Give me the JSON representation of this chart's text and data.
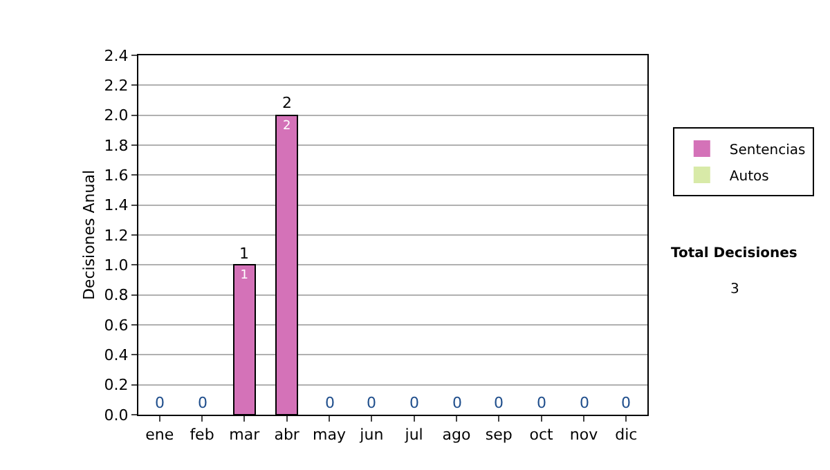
{
  "chart_data": {
    "type": "bar",
    "stacked": true,
    "ylabel": "Decisiones Anual",
    "categories": [
      "ene",
      "feb",
      "mar",
      "abr",
      "may",
      "jun",
      "jul",
      "ago",
      "sep",
      "oct",
      "nov",
      "dic"
    ],
    "series": [
      {
        "name": "Sentencias",
        "color": "#d472b8",
        "values": [
          0,
          0,
          1,
          2,
          0,
          0,
          0,
          0,
          0,
          0,
          0,
          0
        ],
        "value_labels": [
          null,
          null,
          "1",
          "2",
          null,
          null,
          null,
          null,
          null,
          null,
          null,
          null
        ]
      },
      {
        "name": "Autos",
        "color": "#d8eaa8",
        "values": [
          0,
          0,
          0,
          0,
          0,
          0,
          0,
          0,
          0,
          0,
          0,
          0
        ]
      }
    ],
    "totals": [
      "0",
      "0",
      "1",
      "2",
      "0",
      "0",
      "0",
      "0",
      "0",
      "0",
      "0",
      "0"
    ],
    "ylim": [
      0,
      2.4
    ],
    "yticks": [
      {
        "value": 0,
        "label": "0.0"
      },
      {
        "value": 0.2,
        "label": "0.2"
      },
      {
        "value": 0.4,
        "label": "0.4"
      },
      {
        "value": 0.6,
        "label": "0.6"
      },
      {
        "value": 0.8,
        "label": "0.8"
      },
      {
        "value": 1,
        "label": "1.0"
      },
      {
        "value": 1.2,
        "label": "1.2"
      },
      {
        "value": 1.4,
        "label": "1.4"
      },
      {
        "value": 1.6,
        "label": "1.6"
      },
      {
        "value": 1.8,
        "label": "1.8"
      },
      {
        "value": 2,
        "label": "2.0"
      },
      {
        "value": 2.2,
        "label": "2.2"
      },
      {
        "value": 2.4,
        "label": "2.4"
      }
    ],
    "grid": "y",
    "legend": "right",
    "annotations": [
      "Total Decisiones",
      "3"
    ]
  }
}
